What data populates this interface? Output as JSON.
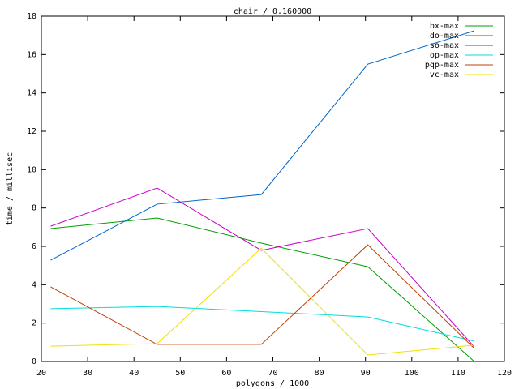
{
  "chart_data": {
    "type": "line",
    "title": "chair / 0.160000",
    "x_label": "polygons / 1000",
    "y_label": "time / millisec",
    "x": [
      22,
      45,
      67.5,
      90.5,
      113.5
    ],
    "series": [
      {
        "name": "bx-max",
        "color": "#00a000",
        "values": [
          6.93,
          7.48,
          6.17,
          4.94,
          0
        ]
      },
      {
        "name": "do-max",
        "color": "#0066cc",
        "values": [
          5.28,
          8.2,
          8.7,
          15.5,
          17.24
        ]
      },
      {
        "name": "so-max",
        "color": "#cc00cc",
        "values": [
          7.05,
          9.04,
          5.79,
          6.93,
          0.76
        ]
      },
      {
        "name": "op-max",
        "color": "#00dddd",
        "values": [
          2.75,
          2.87,
          2.6,
          2.32,
          1.06
        ]
      },
      {
        "name": "pqp-max",
        "color": "#c04000",
        "values": [
          3.89,
          0.89,
          0.89,
          6.08,
          0.68
        ]
      },
      {
        "name": "vc-max",
        "color": "#f0e000",
        "values": [
          0.8,
          0.93,
          5.9,
          0.34,
          0.85
        ]
      }
    ],
    "xlim": [
      20,
      120
    ],
    "xticks": [
      20,
      30,
      40,
      50,
      60,
      70,
      80,
      90,
      100,
      110,
      120
    ],
    "ylim": [
      0,
      18
    ],
    "yticks": [
      0,
      2,
      4,
      6,
      8,
      10,
      12,
      14,
      16,
      18
    ],
    "legend": "top-right"
  }
}
